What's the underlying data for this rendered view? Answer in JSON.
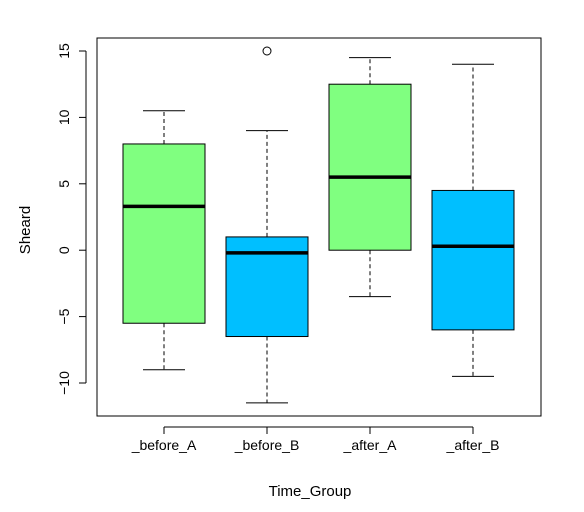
{
  "chart_data": {
    "type": "box",
    "xlabel": "Time_Group",
    "ylabel": "Sheard",
    "ylim": [
      -12.5,
      16.0
    ],
    "yticks": [
      -10,
      -5,
      0,
      5,
      10,
      15
    ],
    "grid": false,
    "categories": [
      "_before_A",
      "_before_B",
      "_after_A",
      "_after_B"
    ],
    "boxes": [
      {
        "category": "_before_A",
        "whisker_low": -9.0,
        "q1": -5.5,
        "median": 3.3,
        "q3": 8.0,
        "whisker_high": 10.5,
        "outliers": [],
        "color": "#80FF80"
      },
      {
        "category": "_before_B",
        "whisker_low": -11.5,
        "q1": -6.5,
        "median": -0.2,
        "q3": 1.0,
        "whisker_high": 9.0,
        "outliers": [
          15.0
        ],
        "color": "#00BFFF"
      },
      {
        "category": "_after_A",
        "whisker_low": -3.5,
        "q1": 0.0,
        "median": 5.5,
        "q3": 12.5,
        "whisker_high": 14.5,
        "outliers": [],
        "color": "#80FF80"
      },
      {
        "category": "_after_B",
        "whisker_low": -9.5,
        "q1": -6.0,
        "median": 0.3,
        "q3": 4.5,
        "whisker_high": 14.0,
        "outliers": [],
        "color": "#00BFFF"
      }
    ]
  }
}
